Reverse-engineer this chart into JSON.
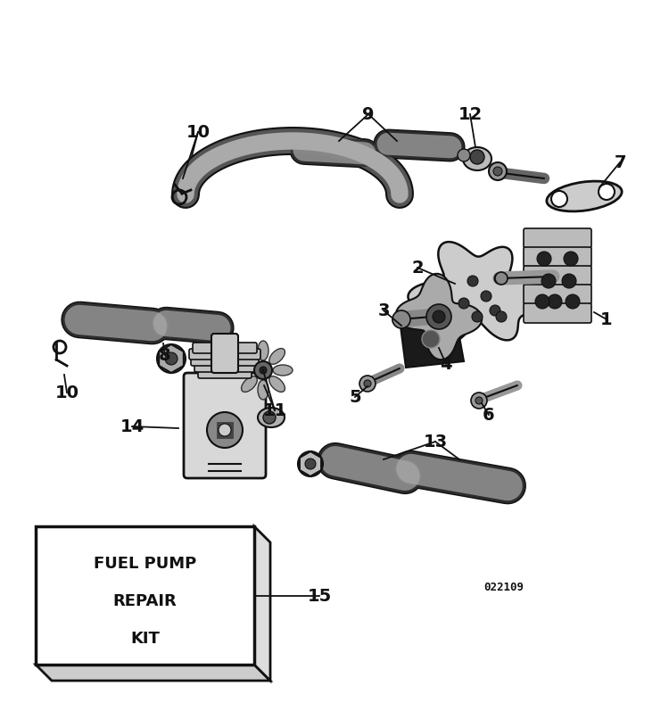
{
  "bg_color": "#ffffff",
  "part_number": "022109",
  "box_label_lines": [
    "FUEL PUMP",
    "REPAIR",
    "KIT"
  ],
  "figsize": [
    7.5,
    7.97
  ],
  "dpi": 100
}
